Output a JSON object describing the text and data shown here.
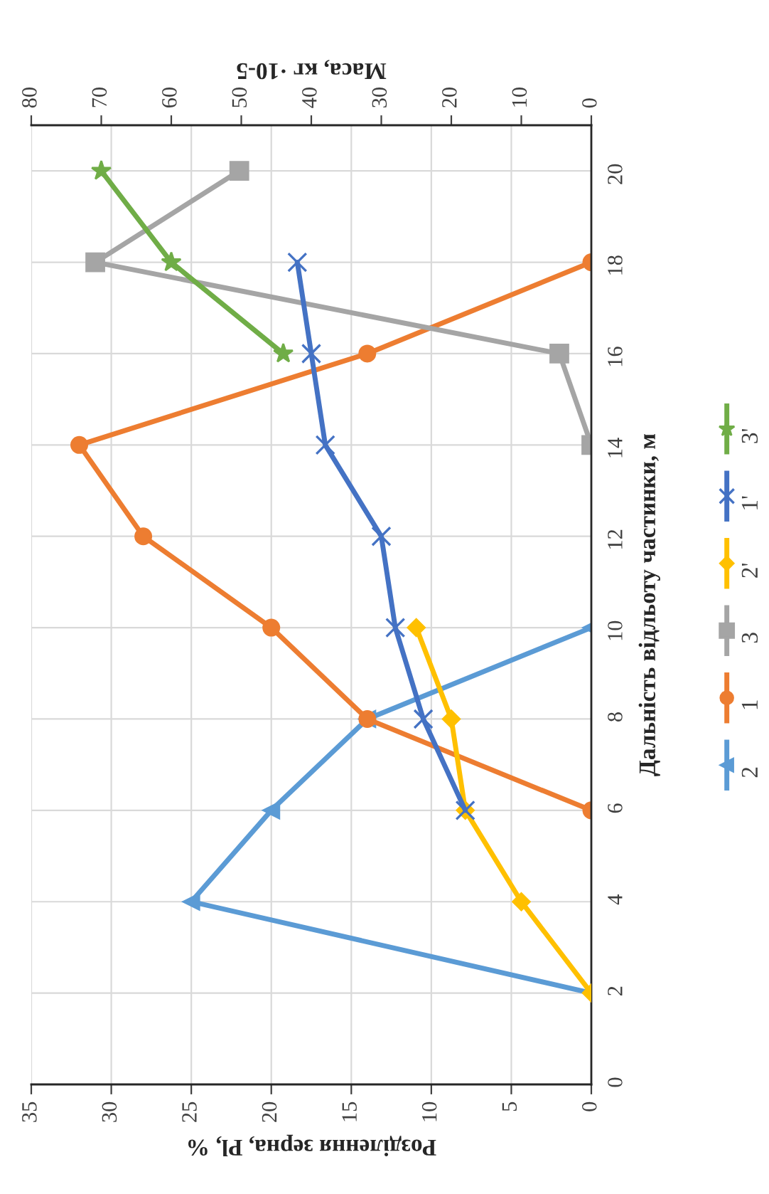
{
  "chart_data": {
    "type": "line",
    "orientation": "horizontal",
    "xlabel": "Розділення зерна, Pl, %",
    "x2label": "Маса, кг ·10-5",
    "ylabel": "Дальність відльоту частинки, м",
    "xlim": [
      35,
      0
    ],
    "xticks": [
      0,
      5,
      10,
      15,
      20,
      25,
      30,
      35
    ],
    "x2lim": [
      80,
      0
    ],
    "x2ticks": [
      0,
      10,
      20,
      30,
      40,
      50,
      60,
      70,
      80
    ],
    "ylim": [
      0,
      21
    ],
    "yticks": [
      0,
      2,
      4,
      6,
      8,
      10,
      12,
      14,
      16,
      18,
      20
    ],
    "grid": true,
    "legend": "right",
    "series": [
      {
        "name": "2",
        "color": "#5b9bd5",
        "marker": "triangle",
        "x": [
          2,
          4,
          6,
          8,
          10
        ],
        "values": [
          0,
          25,
          20,
          14,
          0
        ]
      },
      {
        "name": "1",
        "color": "#ed7d31",
        "marker": "circle",
        "x": [
          6,
          8,
          10,
          12,
          14,
          16,
          18
        ],
        "values": [
          0,
          14,
          20,
          28,
          32,
          14,
          0
        ]
      },
      {
        "name": "3",
        "color": "#a5a5a5",
        "marker": "square",
        "x": [
          14,
          16,
          18,
          20
        ],
        "values": [
          0,
          2,
          31,
          22
        ]
      },
      {
        "name": "2'",
        "color": "#ffc000",
        "marker": "diamond",
        "axis": "x2",
        "x": [
          2,
          4,
          6,
          8,
          10
        ],
        "values": [
          0,
          10,
          18,
          20,
          25
        ]
      },
      {
        "name": "1'",
        "color": "#4472c4",
        "marker": "cross",
        "axis": "x2",
        "x": [
          6,
          8,
          10,
          12,
          14,
          16,
          18
        ],
        "values": [
          18,
          24,
          28,
          30,
          38,
          40,
          42
        ]
      },
      {
        "name": "3'",
        "color": "#70ad47",
        "marker": "star",
        "axis": "x2",
        "x": [
          16,
          18,
          20
        ],
        "values": [
          44,
          60,
          70
        ]
      }
    ]
  }
}
